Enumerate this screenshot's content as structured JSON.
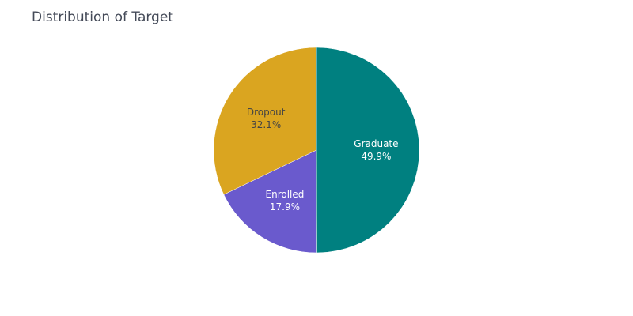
{
  "chart_data": {
    "type": "pie",
    "title": "Distribution of Target",
    "slices": [
      {
        "label": "Graduate",
        "value": 49.9,
        "percent_text": "49.9%",
        "color": "#008080",
        "text_color": "#ffffff"
      },
      {
        "label": "Enrolled",
        "value": 17.9,
        "percent_text": "17.9%",
        "color": "#6a5acd",
        "text_color": "#ffffff"
      },
      {
        "label": "Dropout",
        "value": 32.1,
        "percent_text": "32.1%",
        "color": "#daa520",
        "text_color": "#444444"
      }
    ],
    "direction": "clockwise",
    "start": "top",
    "legend": "none"
  }
}
